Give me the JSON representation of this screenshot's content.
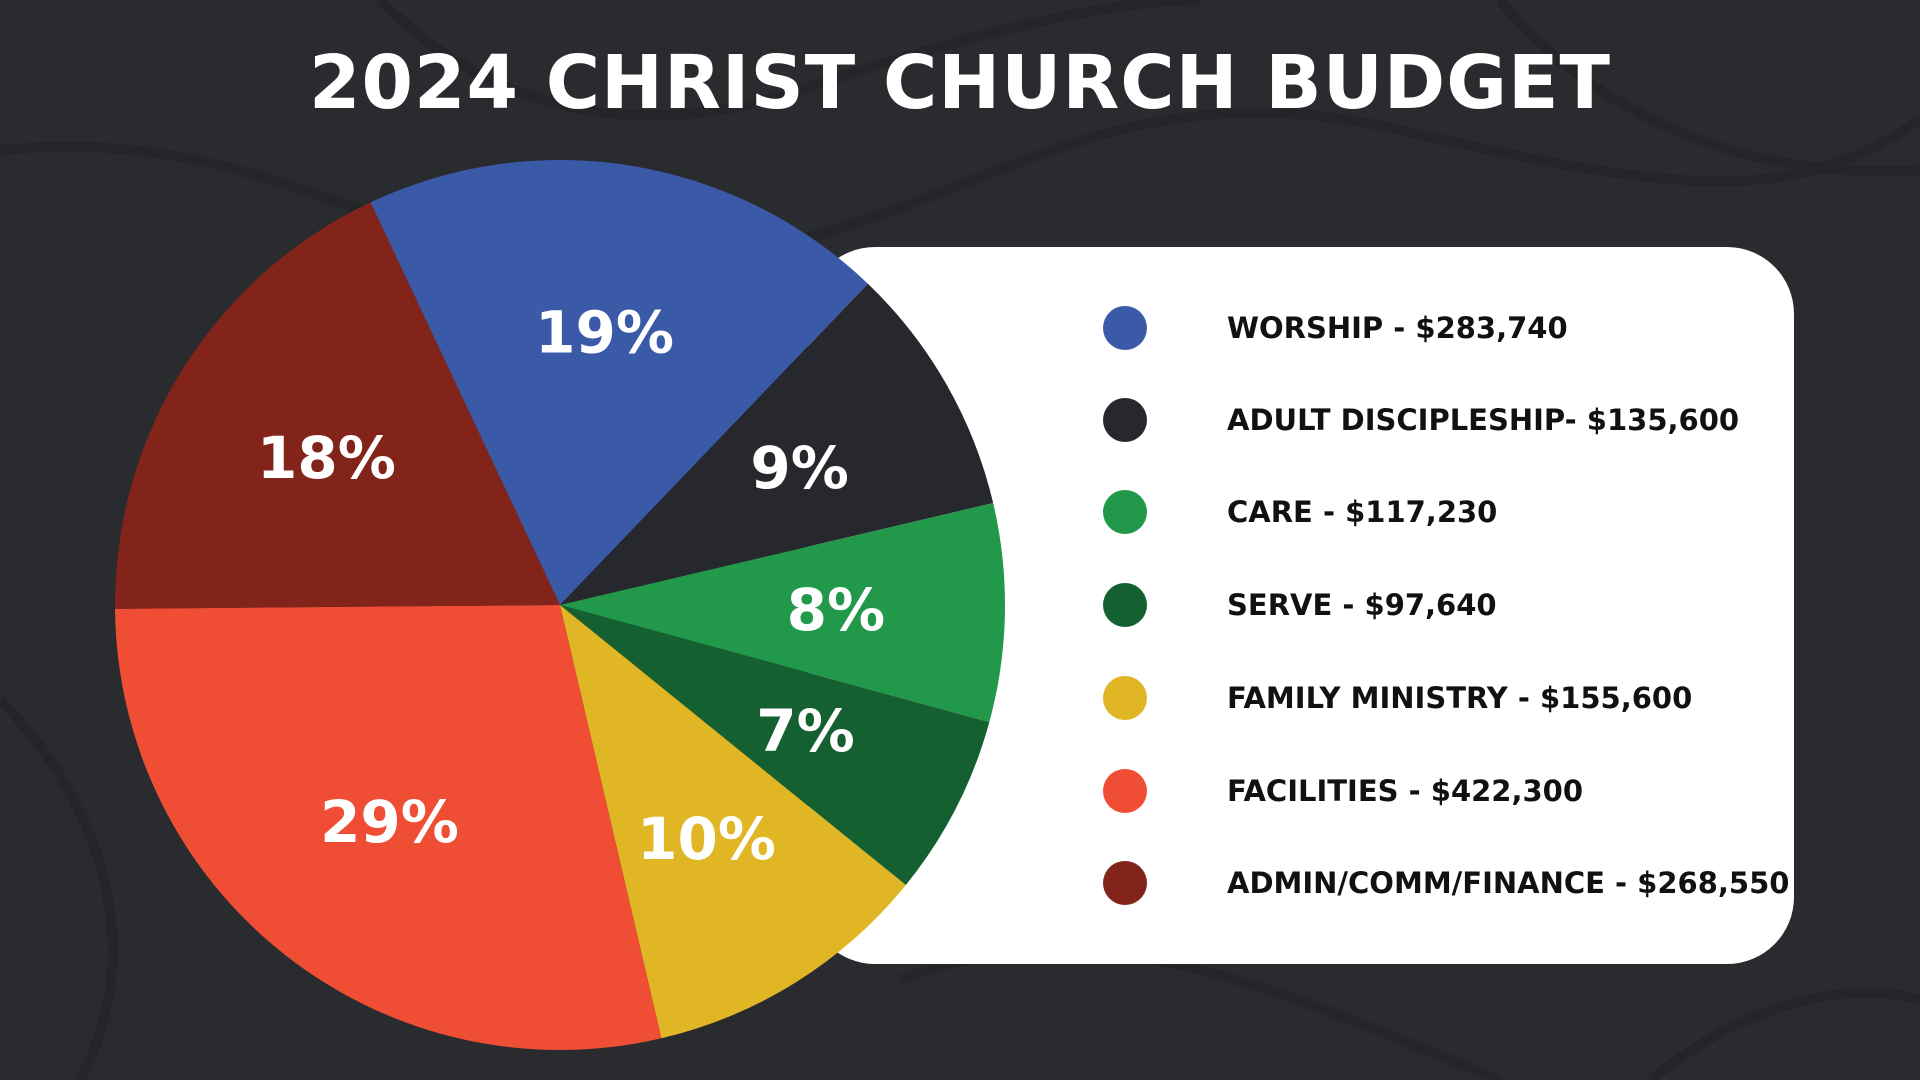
{
  "chart_data": {
    "type": "pie",
    "title": "2024 CHRIST CHURCH BUDGET",
    "slices": [
      {
        "label": "WORSHIP - $283,740",
        "value": 283740,
        "percent_label": "19%",
        "color": "#3a5aa8"
      },
      {
        "label": "ADULT DISCIPLESHIP- $135,600",
        "value": 135600,
        "percent_label": "9%",
        "color": "#27282d"
      },
      {
        "label": "CARE - $117,230",
        "value": 117230,
        "percent_label": "8%",
        "color": "#22994a"
      },
      {
        "label": "SERVE - $97,640",
        "value": 97640,
        "percent_label": "7%",
        "color": "#146030"
      },
      {
        "label": "FAMILY MINISTRY - $155,600",
        "value": 155600,
        "percent_label": "10%",
        "color": "#e1b624"
      },
      {
        "label": "FACILITIES - $422,300",
        "value": 422300,
        "percent_label": "29%",
        "color": "#ef4e34"
      },
      {
        "label": "ADMIN/COMM/FINANCE - $268,550",
        "value": 268550,
        "percent_label": "18%",
        "color": "#83241a"
      }
    ],
    "legend_position": "right"
  }
}
